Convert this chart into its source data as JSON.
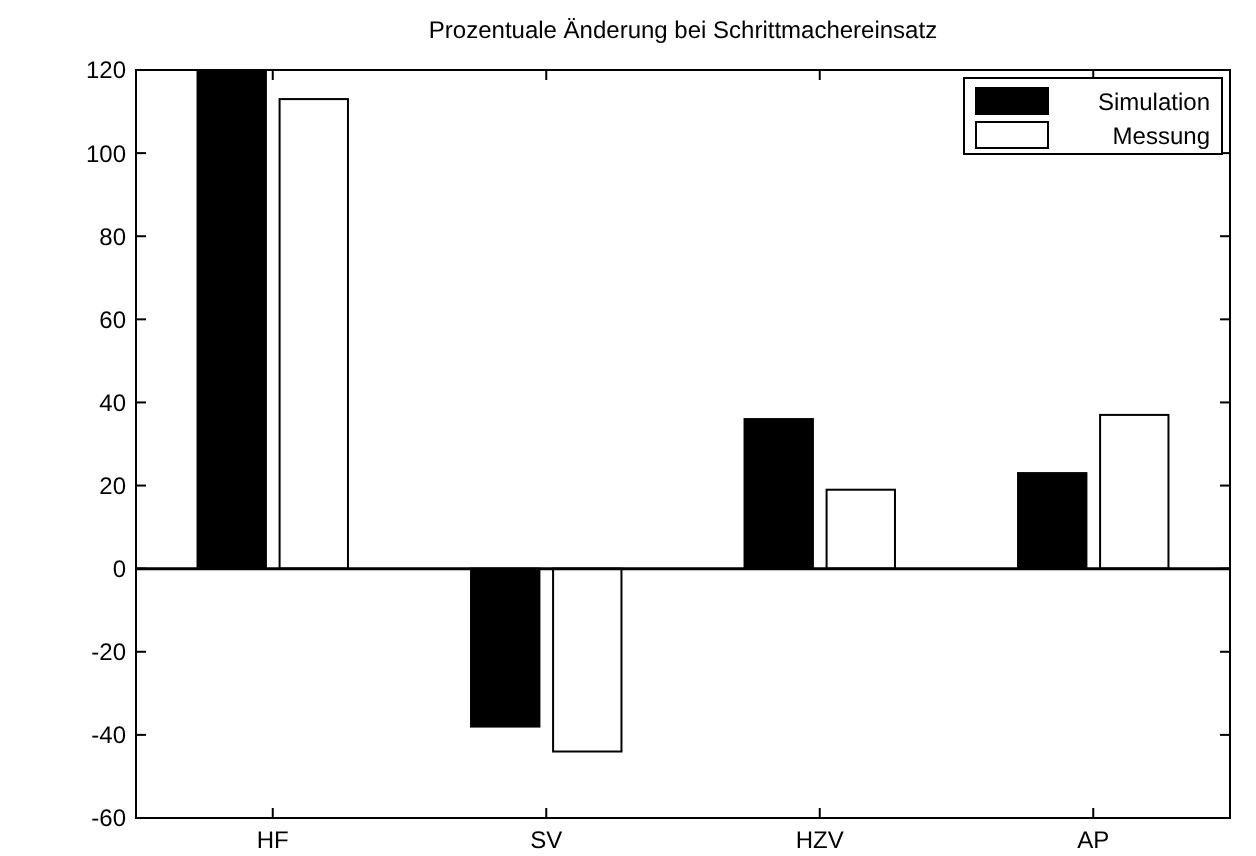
{
  "chart_data": {
    "type": "bar",
    "title": "Prozentuale Änderung bei Schrittmachereinsatz",
    "categories": [
      "HF",
      "SV",
      "HZV",
      "AP"
    ],
    "series": [
      {
        "name": "Simulation",
        "color": "#000000",
        "values": [
          120,
          -38,
          36,
          23
        ]
      },
      {
        "name": "Messung",
        "color": "#ffffff",
        "values": [
          113,
          -44,
          19,
          37
        ]
      }
    ],
    "ylim": [
      -60,
      120
    ],
    "yticks": [
      -60,
      -40,
      -20,
      0,
      20,
      40,
      60,
      80,
      100,
      120
    ],
    "legend": "top right"
  }
}
